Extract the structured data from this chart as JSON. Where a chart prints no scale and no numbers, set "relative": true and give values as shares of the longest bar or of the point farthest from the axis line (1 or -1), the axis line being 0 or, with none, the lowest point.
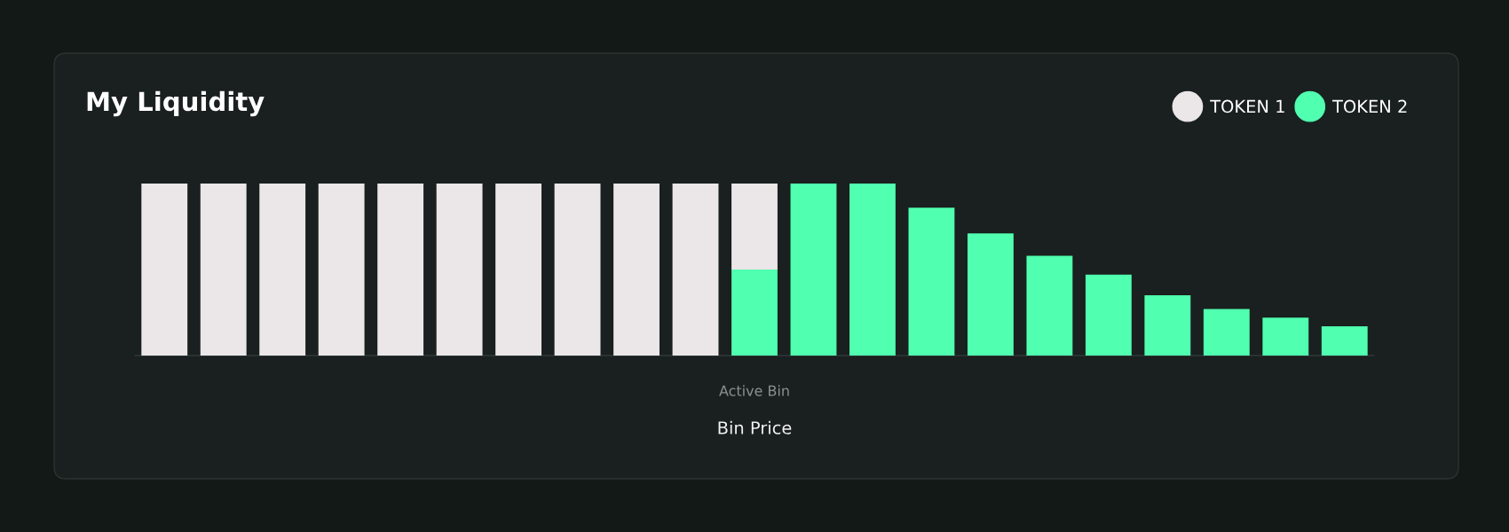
{
  "chart_data": {
    "type": "bar",
    "title": "My Liquidity",
    "xlabel": "Bin Price",
    "categories": [
      null,
      null,
      null,
      null,
      null,
      null,
      null,
      null,
      null,
      null,
      "Active Bin",
      null,
      null,
      null,
      null,
      null,
      null,
      null,
      null,
      null,
      null
    ],
    "stacked": true,
    "relative": true,
    "legend": "top right",
    "series": [
      {
        "name": "TOKEN 2",
        "color": "#50ffb0",
        "values": [
          null,
          null,
          null,
          null,
          null,
          null,
          null,
          null,
          null,
          null,
          0.5,
          1,
          1,
          0.86,
          0.71,
          0.58,
          0.47,
          0.35,
          0.27,
          0.22,
          0.17
        ]
      },
      {
        "name": "TOKEN 1",
        "color": "#ebe6e7",
        "values": [
          1,
          1,
          1,
          1,
          1,
          1,
          1,
          1,
          1,
          1,
          0.5,
          null,
          null,
          null,
          null,
          null,
          null,
          null,
          null,
          null,
          null
        ]
      }
    ]
  }
}
